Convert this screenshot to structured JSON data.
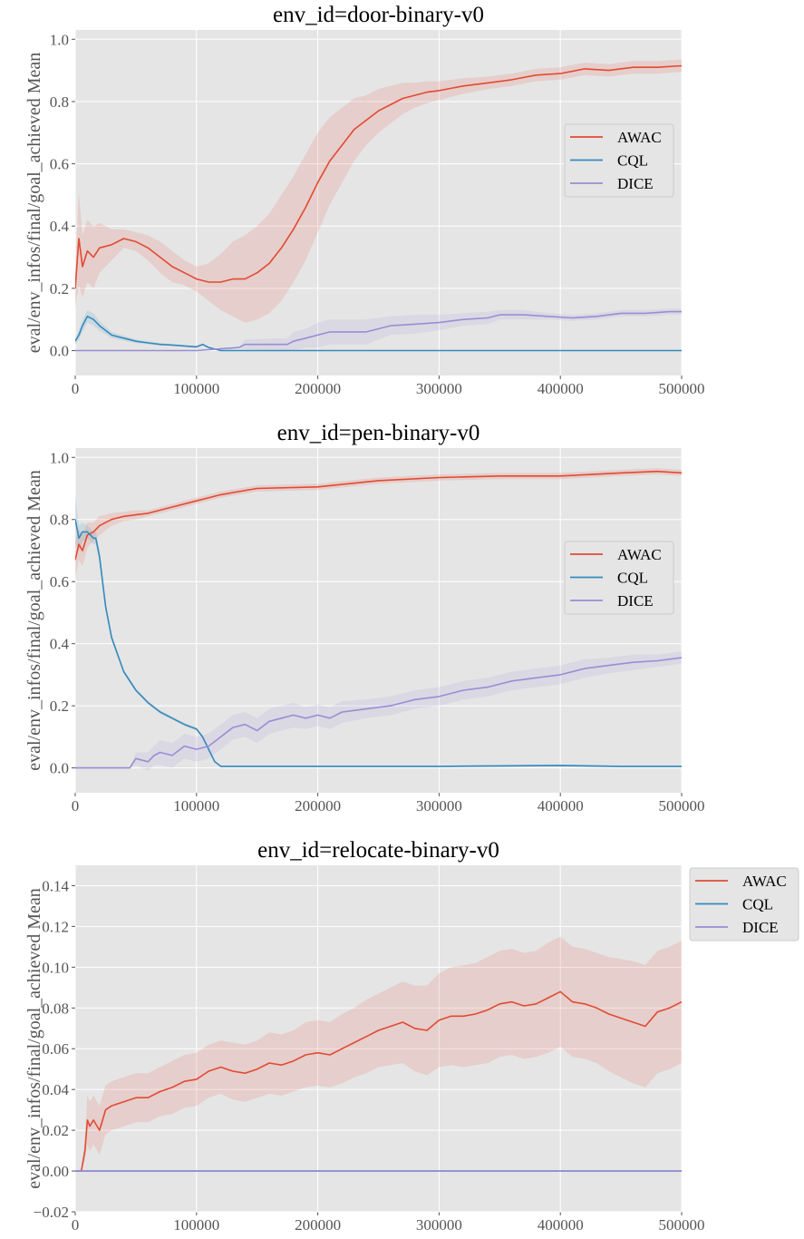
{
  "colors": {
    "AWAC": "#e24a33",
    "CQL": "#348abd",
    "DICE": "#988ed5",
    "axes_bg": "#e5e5e5",
    "grid": "#ffffff"
  },
  "chart_data": [
    {
      "type": "line",
      "title": "env_id=door-binary-v0",
      "xlabel": "",
      "ylabel": "eval/env_infos/final/goal_achieved Mean",
      "xlim": [
        0,
        500000
      ],
      "ylim": [
        -0.08,
        1.03
      ],
      "xticks": [
        0,
        100000,
        200000,
        300000,
        400000,
        500000
      ],
      "xtick_labels": [
        "0",
        "100000",
        "200000",
        "300000",
        "400000",
        "500000"
      ],
      "yticks": [
        0.0,
        0.2,
        0.4,
        0.6,
        0.8,
        1.0
      ],
      "ytick_labels": [
        "0.0",
        "0.2",
        "0.4",
        "0.6",
        "0.8",
        "1.0"
      ],
      "grid": true,
      "legend": "center-right",
      "series": [
        {
          "name": "AWAC",
          "x": [
            0,
            3000,
            6000,
            10000,
            15000,
            20000,
            30000,
            40000,
            50000,
            60000,
            70000,
            80000,
            90000,
            100000,
            110000,
            120000,
            130000,
            140000,
            150000,
            160000,
            170000,
            180000,
            190000,
            200000,
            210000,
            220000,
            230000,
            240000,
            250000,
            260000,
            270000,
            280000,
            290000,
            300000,
            320000,
            340000,
            360000,
            380000,
            400000,
            420000,
            440000,
            460000,
            480000,
            500000
          ],
          "y": [
            0.2,
            0.36,
            0.27,
            0.32,
            0.3,
            0.33,
            0.34,
            0.36,
            0.35,
            0.33,
            0.3,
            0.27,
            0.25,
            0.23,
            0.22,
            0.22,
            0.23,
            0.23,
            0.25,
            0.28,
            0.33,
            0.39,
            0.46,
            0.54,
            0.61,
            0.66,
            0.71,
            0.74,
            0.77,
            0.79,
            0.81,
            0.82,
            0.83,
            0.835,
            0.85,
            0.86,
            0.87,
            0.885,
            0.89,
            0.905,
            0.9,
            0.91,
            0.91,
            0.915
          ],
          "band": [
            0.06,
            0.15,
            0.1,
            0.1,
            0.1,
            0.08,
            0.05,
            0.03,
            0.03,
            0.04,
            0.05,
            0.05,
            0.04,
            0.04,
            0.06,
            0.09,
            0.12,
            0.14,
            0.15,
            0.16,
            0.17,
            0.17,
            0.17,
            0.16,
            0.14,
            0.12,
            0.1,
            0.08,
            0.07,
            0.06,
            0.05,
            0.04,
            0.035,
            0.03,
            0.025,
            0.02,
            0.02,
            0.02,
            0.02,
            0.02,
            0.02,
            0.02,
            0.02,
            0.02
          ]
        },
        {
          "name": "CQL",
          "x": [
            0,
            3000,
            6000,
            10000,
            15000,
            20000,
            30000,
            40000,
            50000,
            60000,
            70000,
            80000,
            90000,
            100000,
            105000,
            110000,
            115000,
            120000,
            150000,
            200000,
            300000,
            400000,
            500000
          ],
          "y": [
            0.03,
            0.05,
            0.08,
            0.11,
            0.1,
            0.08,
            0.05,
            0.04,
            0.03,
            0.025,
            0.02,
            0.018,
            0.015,
            0.012,
            0.02,
            0.01,
            0.005,
            0.0,
            0.0,
            0.0,
            0.0,
            0.0,
            0.0
          ],
          "band": [
            0.01,
            0.015,
            0.02,
            0.02,
            0.02,
            0.015,
            0.01,
            0.008,
            0.006,
            0.005,
            0.004,
            0.003,
            0.003,
            0.003,
            0.003,
            0.002,
            0.001,
            0.0,
            0.0,
            0.0,
            0.0,
            0.0,
            0.0
          ]
        },
        {
          "name": "DICE",
          "x": [
            0,
            100000,
            135000,
            140000,
            175000,
            180000,
            190000,
            200000,
            210000,
            220000,
            240000,
            250000,
            260000,
            280000,
            300000,
            320000,
            340000,
            350000,
            370000,
            390000,
            410000,
            430000,
            450000,
            470000,
            490000,
            500000
          ],
          "y": [
            0.0,
            0.0,
            0.01,
            0.02,
            0.02,
            0.03,
            0.04,
            0.05,
            0.06,
            0.06,
            0.06,
            0.07,
            0.08,
            0.085,
            0.09,
            0.1,
            0.105,
            0.115,
            0.115,
            0.11,
            0.105,
            0.11,
            0.12,
            0.12,
            0.125,
            0.125
          ],
          "band": [
            0.0,
            0.0,
            0.0,
            0.015,
            0.02,
            0.03,
            0.03,
            0.04,
            0.04,
            0.04,
            0.04,
            0.035,
            0.03,
            0.03,
            0.025,
            0.02,
            0.02,
            0.015,
            0.015,
            0.01,
            0.01,
            0.01,
            0.01,
            0.01,
            0.01,
            0.01
          ]
        }
      ]
    },
    {
      "type": "line",
      "title": "env_id=pen-binary-v0",
      "xlabel": "",
      "ylabel": "eval/env_infos/final/goal_achieved Mean",
      "xlim": [
        0,
        500000
      ],
      "ylim": [
        -0.08,
        1.03
      ],
      "xticks": [
        0,
        100000,
        200000,
        300000,
        400000,
        500000
      ],
      "xtick_labels": [
        "0",
        "100000",
        "200000",
        "300000",
        "400000",
        "500000"
      ],
      "yticks": [
        0.0,
        0.2,
        0.4,
        0.6,
        0.8,
        1.0
      ],
      "ytick_labels": [
        "0.0",
        "0.2",
        "0.4",
        "0.6",
        "0.8",
        "1.0"
      ],
      "grid": true,
      "legend": "center-right",
      "series": [
        {
          "name": "AWAC",
          "x": [
            0,
            3000,
            6000,
            10000,
            15000,
            20000,
            30000,
            40000,
            50000,
            60000,
            80000,
            100000,
            120000,
            150000,
            200000,
            250000,
            300000,
            350000,
            400000,
            450000,
            480000,
            500000
          ],
          "y": [
            0.67,
            0.72,
            0.7,
            0.75,
            0.76,
            0.78,
            0.8,
            0.81,
            0.815,
            0.82,
            0.84,
            0.86,
            0.88,
            0.9,
            0.905,
            0.925,
            0.935,
            0.94,
            0.94,
            0.95,
            0.955,
            0.95
          ],
          "band": [
            0.06,
            0.05,
            0.05,
            0.04,
            0.03,
            0.03,
            0.02,
            0.015,
            0.015,
            0.01,
            0.01,
            0.01,
            0.01,
            0.01,
            0.01,
            0.01,
            0.01,
            0.01,
            0.01,
            0.01,
            0.01,
            0.01
          ]
        },
        {
          "name": "CQL",
          "x": [
            0,
            3000,
            6000,
            10000,
            15000,
            17000,
            20000,
            25000,
            30000,
            40000,
            50000,
            60000,
            70000,
            80000,
            90000,
            100000,
            105000,
            110000,
            115000,
            120000,
            200000,
            300000,
            400000,
            450000,
            500000
          ],
          "y": [
            0.8,
            0.74,
            0.76,
            0.76,
            0.74,
            0.74,
            0.68,
            0.52,
            0.42,
            0.31,
            0.25,
            0.21,
            0.18,
            0.16,
            0.14,
            0.125,
            0.1,
            0.06,
            0.02,
            0.005,
            0.005,
            0.005,
            0.008,
            0.005,
            0.005
          ],
          "band": [
            0.08,
            0.04,
            0.03,
            0.02,
            0.02,
            0.02,
            0.02,
            0.01,
            0.01,
            0.005,
            0.005,
            0.005,
            0.005,
            0.005,
            0.005,
            0.005,
            0.005,
            0.005,
            0.003,
            0.002,
            0.002,
            0.002,
            0.003,
            0.002,
            0.002
          ]
        },
        {
          "name": "DICE",
          "x": [
            0,
            45000,
            50000,
            60000,
            65000,
            70000,
            80000,
            90000,
            100000,
            110000,
            120000,
            130000,
            140000,
            150000,
            160000,
            170000,
            180000,
            190000,
            200000,
            210000,
            220000,
            240000,
            260000,
            280000,
            300000,
            320000,
            340000,
            360000,
            380000,
            400000,
            420000,
            440000,
            460000,
            480000,
            500000
          ],
          "y": [
            0.0,
            0.0,
            0.03,
            0.02,
            0.04,
            0.05,
            0.04,
            0.07,
            0.06,
            0.07,
            0.1,
            0.13,
            0.14,
            0.12,
            0.15,
            0.16,
            0.17,
            0.16,
            0.17,
            0.16,
            0.18,
            0.19,
            0.2,
            0.22,
            0.23,
            0.25,
            0.26,
            0.28,
            0.29,
            0.3,
            0.32,
            0.33,
            0.34,
            0.345,
            0.355
          ],
          "band": [
            0.0,
            0.0,
            0.02,
            0.03,
            0.03,
            0.04,
            0.04,
            0.04,
            0.04,
            0.04,
            0.04,
            0.04,
            0.04,
            0.04,
            0.04,
            0.04,
            0.04,
            0.035,
            0.035,
            0.035,
            0.035,
            0.03,
            0.03,
            0.03,
            0.03,
            0.03,
            0.03,
            0.03,
            0.03,
            0.03,
            0.03,
            0.025,
            0.025,
            0.02,
            0.02
          ]
        }
      ]
    },
    {
      "type": "line",
      "title": "env_id=relocate-binary-v0",
      "xlabel": "",
      "ylabel": "eval/env_infos/final/goal_achieved Mean",
      "xlim": [
        0,
        500000
      ],
      "ylim": [
        -0.02,
        0.15
      ],
      "xticks": [
        0,
        100000,
        200000,
        300000,
        400000,
        500000
      ],
      "xtick_labels": [
        "0",
        "100000",
        "200000",
        "300000",
        "400000",
        "500000"
      ],
      "yticks": [
        -0.02,
        0.0,
        0.02,
        0.04,
        0.06,
        0.08,
        0.1,
        0.12,
        0.14
      ],
      "ytick_labels": [
        "−0.02",
        "0.00",
        "0.02",
        "0.04",
        "0.06",
        "0.08",
        "0.10",
        "0.12",
        "0.14"
      ],
      "grid": true,
      "legend": "outside-top-right",
      "series": [
        {
          "name": "AWAC",
          "x": [
            0,
            5000,
            8000,
            10000,
            12000,
            15000,
            20000,
            25000,
            30000,
            40000,
            50000,
            60000,
            70000,
            80000,
            90000,
            100000,
            110000,
            120000,
            130000,
            140000,
            150000,
            160000,
            170000,
            180000,
            190000,
            200000,
            210000,
            220000,
            230000,
            240000,
            250000,
            260000,
            270000,
            280000,
            290000,
            300000,
            310000,
            320000,
            330000,
            340000,
            350000,
            360000,
            370000,
            380000,
            390000,
            400000,
            410000,
            420000,
            430000,
            440000,
            450000,
            460000,
            470000,
            480000,
            490000,
            500000
          ],
          "y": [
            0.0,
            0.0,
            0.01,
            0.025,
            0.022,
            0.025,
            0.02,
            0.03,
            0.032,
            0.034,
            0.036,
            0.036,
            0.039,
            0.041,
            0.044,
            0.045,
            0.049,
            0.051,
            0.049,
            0.048,
            0.05,
            0.053,
            0.052,
            0.054,
            0.057,
            0.058,
            0.057,
            0.06,
            0.063,
            0.066,
            0.069,
            0.071,
            0.073,
            0.07,
            0.069,
            0.074,
            0.076,
            0.076,
            0.077,
            0.079,
            0.082,
            0.083,
            0.081,
            0.082,
            0.085,
            0.088,
            0.083,
            0.082,
            0.08,
            0.077,
            0.075,
            0.073,
            0.071,
            0.078,
            0.08,
            0.083
          ],
          "band": [
            0.0,
            0.0,
            0.005,
            0.012,
            0.012,
            0.012,
            0.012,
            0.012,
            0.012,
            0.012,
            0.012,
            0.012,
            0.012,
            0.013,
            0.013,
            0.013,
            0.013,
            0.013,
            0.014,
            0.014,
            0.014,
            0.015,
            0.015,
            0.015,
            0.016,
            0.016,
            0.016,
            0.017,
            0.017,
            0.018,
            0.018,
            0.019,
            0.02,
            0.021,
            0.022,
            0.023,
            0.024,
            0.025,
            0.025,
            0.026,
            0.026,
            0.026,
            0.026,
            0.026,
            0.027,
            0.027,
            0.027,
            0.027,
            0.027,
            0.028,
            0.029,
            0.03,
            0.03,
            0.03,
            0.03,
            0.03
          ]
        },
        {
          "name": "CQL",
          "x": [
            0,
            500000
          ],
          "y": [
            0.0,
            0.0
          ],
          "band": [
            0.0,
            0.0
          ]
        },
        {
          "name": "DICE",
          "x": [
            0,
            500000
          ],
          "y": [
            0.0,
            0.0
          ],
          "band": [
            0.0,
            0.0
          ]
        }
      ]
    }
  ]
}
